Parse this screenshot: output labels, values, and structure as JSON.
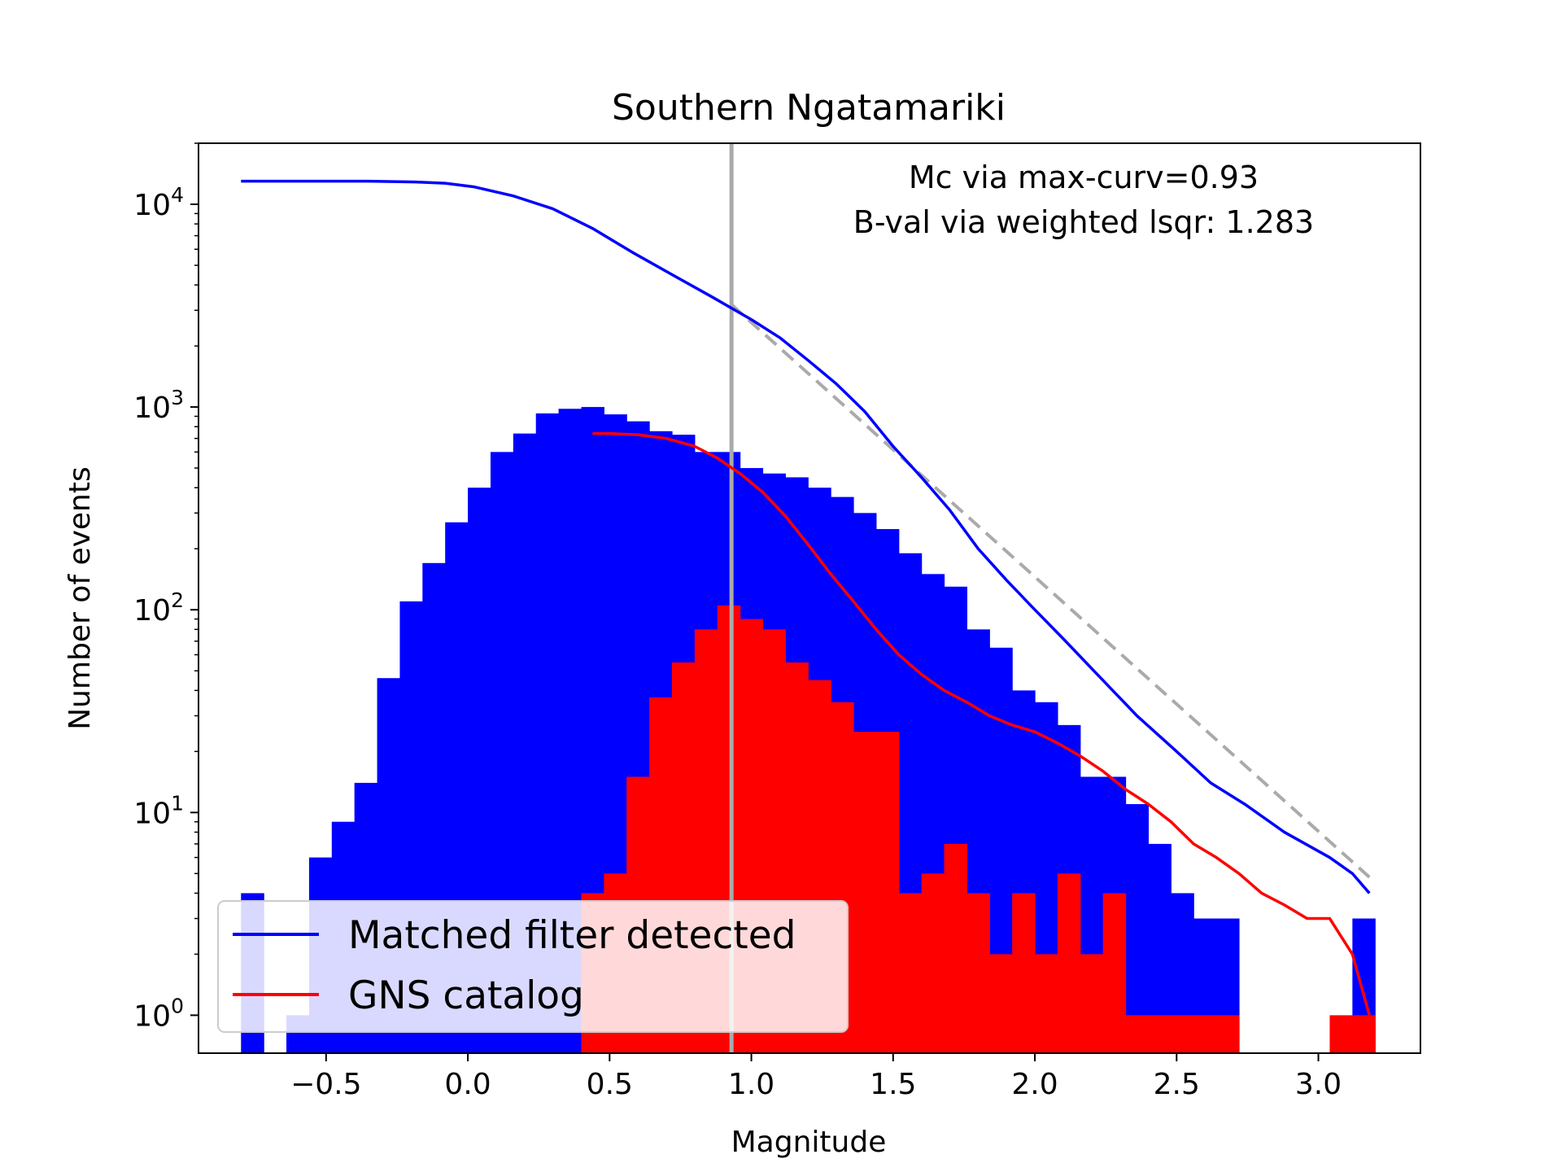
{
  "chart_data": {
    "type": "bar",
    "title": "Southern Ngatamariki",
    "xlabel": "Magnitude",
    "ylabel": "Number of events",
    "y_scale": "log",
    "xlim": [
      -0.95,
      3.36
    ],
    "ylim": [
      0.65,
      20000
    ],
    "x_ticks": [
      -0.5,
      0.0,
      0.5,
      1.0,
      1.5,
      2.0,
      2.5,
      3.0
    ],
    "x_tick_labels": [
      "−0.5",
      "0.0",
      "0.5",
      "1.0",
      "1.5",
      "2.0",
      "2.5",
      "3.0"
    ],
    "y_ticks": [
      1,
      10,
      100,
      1000,
      10000
    ],
    "y_tick_labels": [
      {
        "base": "10",
        "exp": "0"
      },
      {
        "base": "10",
        "exp": "1"
      },
      {
        "base": "10",
        "exp": "2"
      },
      {
        "base": "10",
        "exp": "3"
      },
      {
        "base": "10",
        "exp": "4"
      }
    ],
    "annotations": [
      "Mc via max-curv=0.93",
      "B-val via weighted lsqr: 1.283"
    ],
    "grid": false,
    "legend_position": "lower-left",
    "bin_edges": [
      -0.8,
      -0.72,
      -0.64,
      -0.56,
      -0.48,
      -0.4,
      -0.32,
      -0.24,
      -0.16,
      -0.08,
      0.0,
      0.08,
      0.16,
      0.24,
      0.32,
      0.4,
      0.48,
      0.56,
      0.64,
      0.72,
      0.8,
      0.88,
      0.96,
      1.04,
      1.12,
      1.2,
      1.28,
      1.36,
      1.44,
      1.52,
      1.6,
      1.68,
      1.76,
      1.84,
      1.92,
      2.0,
      2.08,
      2.16,
      2.24,
      2.32,
      2.4,
      2.48,
      2.56,
      2.64,
      2.72,
      2.8,
      2.88,
      2.96,
      3.04,
      3.12,
      3.2
    ],
    "bar_series": [
      {
        "name": "Matched filter detected",
        "color": "#0000ff",
        "values": [
          4,
          0,
          1,
          6,
          9,
          14,
          46,
          110,
          170,
          270,
          400,
          600,
          740,
          930,
          980,
          1000,
          920,
          850,
          760,
          730,
          600,
          600,
          500,
          470,
          450,
          400,
          360,
          300,
          250,
          190,
          150,
          130,
          80,
          65,
          40,
          35,
          27,
          15,
          15,
          11,
          7,
          4,
          3,
          3,
          0,
          0,
          0,
          0,
          0,
          3
        ]
      },
      {
        "name": "GNS catalog",
        "color": "#ff0000",
        "values": [
          0,
          0,
          0,
          0,
          0,
          0,
          0,
          0,
          0,
          0,
          0,
          0,
          0,
          0,
          0,
          4,
          5,
          15,
          37,
          55,
          80,
          105,
          90,
          80,
          55,
          45,
          35,
          25,
          25,
          4,
          5,
          7,
          4,
          2,
          4,
          2,
          5,
          2,
          4,
          1,
          1,
          1,
          1,
          1,
          0,
          0,
          0,
          0,
          1,
          1
        ]
      }
    ],
    "line_series": [
      {
        "name": "Matched filter detected",
        "color": "#0000ff",
        "x": [
          -0.8,
          -0.65,
          -0.5,
          -0.35,
          -0.2,
          -0.08,
          0.02,
          0.16,
          0.3,
          0.44,
          0.58,
          0.72,
          0.86,
          1.0,
          1.1,
          1.2,
          1.3,
          1.4,
          1.5,
          1.6,
          1.7,
          1.8,
          1.9,
          2.0,
          2.1,
          2.22,
          2.36,
          2.5,
          2.62,
          2.74,
          2.88,
          3.04,
          3.12,
          3.18
        ],
        "y": [
          13000,
          13000,
          13000,
          13000,
          12900,
          12700,
          12200,
          11000,
          9500,
          7600,
          5800,
          4500,
          3500,
          2700,
          2200,
          1700,
          1300,
          950,
          640,
          450,
          310,
          200,
          140,
          100,
          72,
          48,
          30,
          20,
          14,
          11,
          8,
          6,
          5,
          4
        ]
      },
      {
        "name": "GNS catalog",
        "color": "#ff0000",
        "x": [
          0.44,
          0.5,
          0.6,
          0.7,
          0.8,
          0.88,
          0.96,
          1.04,
          1.12,
          1.2,
          1.28,
          1.36,
          1.44,
          1.52,
          1.6,
          1.68,
          1.76,
          1.84,
          1.92,
          2.0,
          2.08,
          2.16,
          2.24,
          2.32,
          2.4,
          2.48,
          2.56,
          2.64,
          2.72,
          2.8,
          2.88,
          2.96,
          3.04,
          3.12,
          3.18
        ],
        "y": [
          740,
          740,
          730,
          700,
          640,
          560,
          470,
          380,
          290,
          210,
          150,
          110,
          80,
          60,
          48,
          40,
          35,
          30,
          27,
          25,
          22,
          19,
          16,
          13,
          11,
          9,
          7,
          6,
          5,
          4,
          3.5,
          3,
          3,
          2,
          1
        ]
      }
    ],
    "mc_line": {
      "x": 0.93,
      "color": "#aaaaaa"
    },
    "fit_line": {
      "x": [
        0.93,
        3.18
      ],
      "y": [
        3200,
        4.8
      ],
      "color": "#aaaaaa",
      "style": "dashed"
    }
  }
}
